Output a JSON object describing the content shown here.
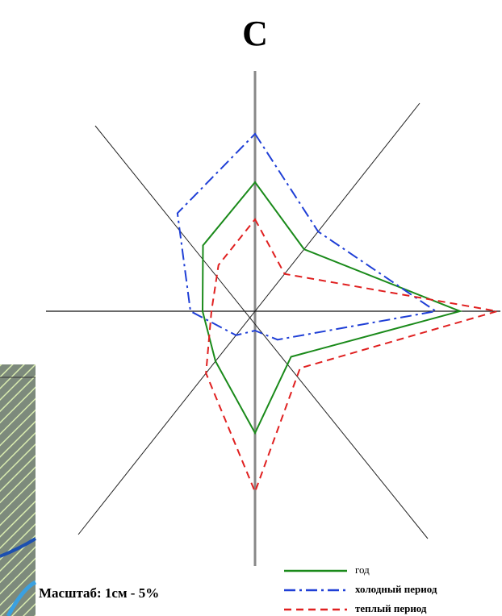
{
  "chart_data": {
    "type": "radar",
    "categories": [
      "С",
      null,
      null,
      null,
      null,
      null,
      null,
      null
    ],
    "note": "Масштаб: 1см - 5%",
    "legend": "bottom-right",
    "series": [
      {
        "name": "год",
        "color": "#1a8a1a",
        "style": "solid",
        "values": [
          8.0,
          4.9,
          12.7,
          3.6,
          7.55,
          3.95,
          3.25,
          5.2
        ]
      },
      {
        "name": "холодный период",
        "color": "#1f3fd6",
        "style": "dashdot",
        "values": [
          11.0,
          6.3,
          11.2,
          2.25,
          1.2,
          1.9,
          4.0,
          7.75
        ]
      },
      {
        "name": "теплый период",
        "color": "#e02020",
        "style": "dashed",
        "values": [
          5.7,
          2.95,
          15.0,
          4.5,
          11.2,
          4.9,
          2.7,
          3.65
        ]
      }
    ]
  }
}
